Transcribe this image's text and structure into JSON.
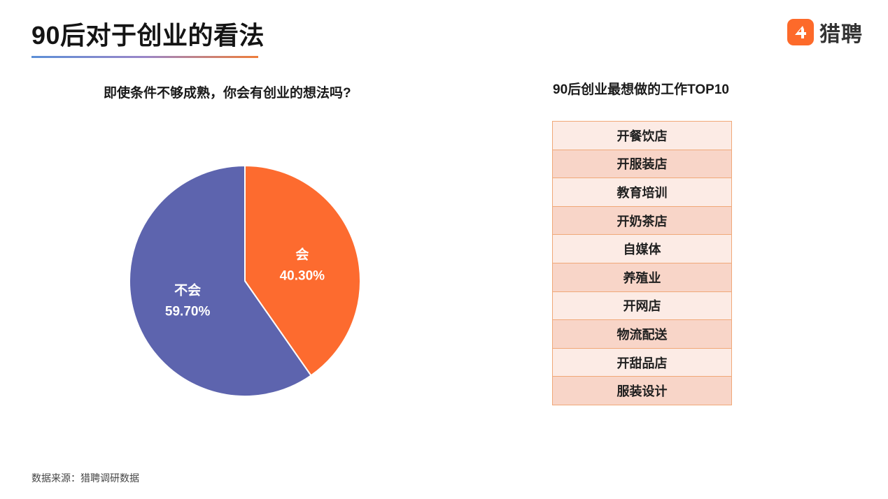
{
  "page": {
    "title": "90后对于创业的看法",
    "source": "数据来源：猎聘调研数据"
  },
  "logo": {
    "text": "猎聘",
    "icon": "liepin-logo-icon",
    "color": "#fd6a2a"
  },
  "chart_data": [
    {
      "type": "pie",
      "title": "即使条件不够成熟，你会有创业的想法吗?",
      "slices": [
        {
          "label": "会",
          "value": 40.3,
          "display": "40.30%",
          "color": "#fd6b2f"
        },
        {
          "label": "不会",
          "value": 59.7,
          "display": "59.70%",
          "color": "#5d64ae"
        }
      ],
      "start_angle": "12 o'clock",
      "direction": "clockwise",
      "legend": "none"
    },
    {
      "type": "table",
      "title": "90后创业最想做的工作TOP10",
      "rows": [
        "开餐饮店",
        "开服装店",
        "教育培训",
        "开奶茶店",
        "自媒体",
        "养殖业",
        "开网店",
        "物流配送",
        "开甜品店",
        "服装设计"
      ]
    }
  ]
}
